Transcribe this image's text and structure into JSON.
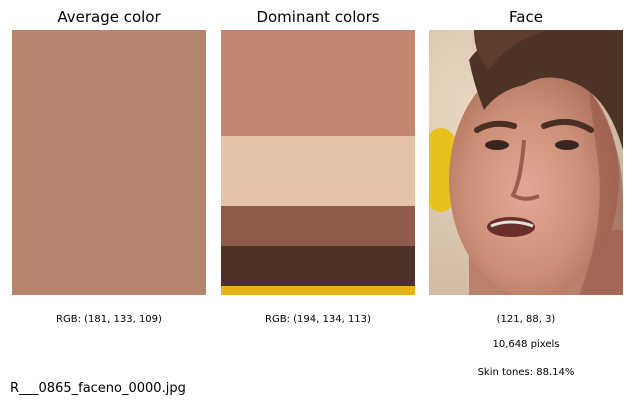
{
  "panels": {
    "average": {
      "title": "Average color",
      "rgb_label": "RGB: (181, 133, 109)",
      "color": "#b5856d"
    },
    "dominant": {
      "title": "Dominant colors",
      "rgb_label": "RGB: (194, 134, 113)",
      "bands": [
        {
          "color": "#c28671",
          "share": 0.4
        },
        {
          "color": "#e5c3a8",
          "share": 0.265
        },
        {
          "color": "#8d5c4a",
          "share": 0.15
        },
        {
          "color": "#4e3228",
          "share": 0.15
        },
        {
          "color": "#e6b419",
          "share": 0.035
        }
      ]
    },
    "face": {
      "title": "Face",
      "shape_label": "(121, 88, 3)",
      "pixels_label": "10,648 pixels",
      "skin_label": "Skin tones: 88.14%"
    }
  },
  "filename": "R___0865_faceno_0000.jpg"
}
